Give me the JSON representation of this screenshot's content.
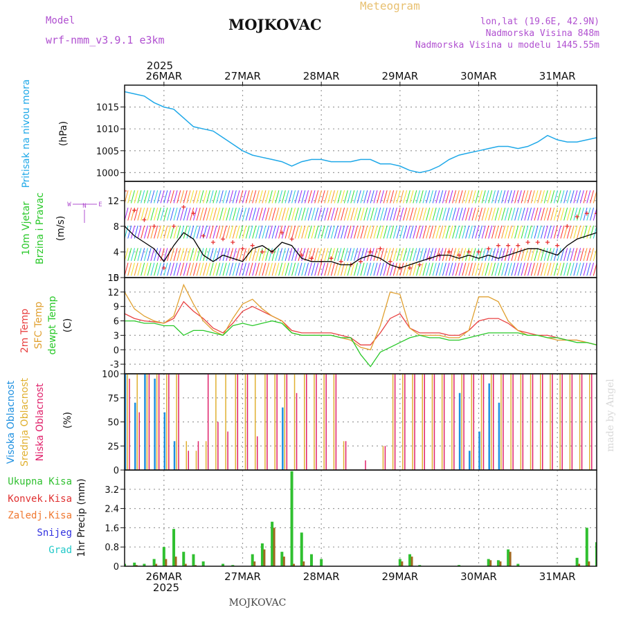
{
  "header": {
    "model_label": "Model",
    "model_name": "wrf-nmm_v3.9.1 e3km",
    "station": "MOJKOVAC",
    "product": "Meteogram",
    "coords": "lon,lat (19.6E, 42.9N)",
    "elevation": "Nadmorska Visina 848m",
    "model_elevation": "Nadmorska Visina u modelu 1445.55m"
  },
  "footer": {
    "station": "MOJKOVAC",
    "credit": "made by Angel"
  },
  "colors": {
    "pressure": "#1ea8e8",
    "wind_speed": "#000000",
    "gust": "#e83030",
    "t2m": "#e84040",
    "tsfc": "#e0a030",
    "dewpt": "#28c828",
    "cloud_high": "#1e90e0",
    "cloud_mid": "#e0b030",
    "cloud_low": "#e0206a",
    "precip_total": "#30c030",
    "precip_conv": "#e03030",
    "precip_frozen": "#f07830",
    "snow": "#3030e0",
    "graupel": "#20c8c8",
    "label_purple": "#b050d0"
  },
  "chart_data": [
    {
      "id": "pressure",
      "type": "line",
      "ylabel_name": "Pritisak na nivou mora",
      "ylabel_unit": "(hPa)",
      "ylim": [
        998,
        1020
      ],
      "yticks": [
        1000,
        1005,
        1010,
        1015
      ],
      "x": [
        0,
        3,
        6,
        9,
        12,
        15,
        18,
        21,
        24,
        27,
        30,
        33,
        36,
        39,
        42,
        45,
        48,
        51,
        54,
        57,
        60,
        63,
        66,
        69,
        72,
        75,
        78,
        81,
        84,
        87,
        90,
        93,
        96,
        99,
        102,
        105,
        108,
        111,
        114,
        117,
        120,
        123,
        126,
        129,
        132,
        135,
        138,
        141,
        144
      ],
      "values": [
        1018.5,
        1018.0,
        1017.5,
        1016.0,
        1015.0,
        1014.5,
        1012.5,
        1010.5,
        1010.0,
        1009.5,
        1008.0,
        1006.5,
        1005.0,
        1004.0,
        1003.5,
        1003.0,
        1002.5,
        1001.5,
        1002.5,
        1003.0,
        1003.0,
        1002.5,
        1002.5,
        1002.5,
        1003.0,
        1003.0,
        1002.0,
        1002.0,
        1001.5,
        1000.5,
        1000.0,
        1000.5,
        1001.5,
        1003.0,
        1004.0,
        1004.5,
        1005.0,
        1005.5,
        1006.0,
        1006.0,
        1005.5,
        1006.0,
        1007.0,
        1008.5,
        1007.5,
        1007.0,
        1007.0,
        1007.5,
        1008.0
      ]
    },
    {
      "id": "wind",
      "type": "line",
      "ylabel_name": "10m Vjetar",
      "ylabel_name2": "Brzina i Pravac",
      "ylabel_unit": "(m/s)",
      "compass": "N",
      "ylim": [
        0,
        15
      ],
      "yticks": [
        0,
        4,
        8,
        12
      ],
      "x": [
        0,
        3,
        6,
        9,
        12,
        15,
        18,
        21,
        24,
        27,
        30,
        33,
        36,
        39,
        42,
        45,
        48,
        51,
        54,
        57,
        60,
        63,
        66,
        69,
        72,
        75,
        78,
        81,
        84,
        87,
        90,
        93,
        96,
        99,
        102,
        105,
        108,
        111,
        114,
        117,
        120,
        123,
        126,
        129,
        132,
        135,
        138,
        141,
        144
      ],
      "series": [
        {
          "name": "Brzina",
          "values": [
            8.0,
            6.5,
            5.5,
            4.5,
            2.5,
            5.0,
            7.0,
            6.0,
            3.5,
            2.5,
            3.5,
            3.0,
            2.5,
            4.5,
            5.0,
            4.0,
            5.5,
            5.0,
            3.0,
            2.5,
            2.5,
            2.5,
            2.0,
            2.0,
            3.0,
            3.5,
            3.0,
            2.0,
            1.5,
            2.0,
            2.5,
            3.0,
            3.5,
            3.5,
            3.0,
            3.5,
            3.0,
            3.5,
            3.0,
            3.5,
            4.0,
            4.5,
            4.5,
            4.0,
            3.5,
            5.0,
            6.0,
            6.5,
            7.0
          ]
        },
        {
          "name": "Udari",
          "values": [
            13.5,
            10.5,
            9.0,
            8.0,
            1.5,
            8.0,
            11.0,
            10.0,
            6.5,
            5.5,
            6.0,
            5.5,
            4.5,
            5.0,
            4.0,
            4.0,
            7.0,
            6.0,
            3.5,
            3.0,
            2.5,
            3.0,
            2.5,
            2.0,
            2.5,
            4.0,
            4.5,
            2.5,
            1.5,
            1.5,
            2.0,
            3.0,
            3.5,
            4.0,
            3.5,
            4.0,
            4.0,
            4.5,
            5.0,
            5.0,
            5.0,
            5.5,
            5.5,
            5.5,
            5.0,
            8.0,
            9.5,
            10.0,
            10.0
          ]
        }
      ]
    },
    {
      "id": "temperature",
      "type": "line",
      "ylabel_name": "2m Temp",
      "ylabel_name2": "SFC Temp",
      "ylabel_name3": "dewpt Temp",
      "ylabel_unit": "(C)",
      "ylim": [
        -5,
        15
      ],
      "yticks": [
        -3,
        0,
        3,
        6,
        9,
        12,
        15
      ],
      "x": [
        0,
        3,
        6,
        9,
        12,
        15,
        18,
        21,
        24,
        27,
        30,
        33,
        36,
        39,
        42,
        45,
        48,
        51,
        54,
        57,
        60,
        63,
        66,
        69,
        72,
        75,
        78,
        81,
        84,
        87,
        90,
        93,
        96,
        99,
        102,
        105,
        108,
        111,
        114,
        117,
        120,
        123,
        126,
        129,
        132,
        135,
        138,
        141,
        144
      ],
      "series": [
        {
          "name": "2m Temp",
          "values": [
            7.5,
            6.5,
            6.0,
            5.8,
            5.5,
            6.5,
            10.0,
            8.0,
            6.5,
            4.5,
            3.5,
            5.5,
            8.0,
            9.0,
            8.0,
            7.0,
            6.0,
            4.0,
            3.5,
            3.5,
            3.5,
            3.5,
            3.0,
            2.5,
            1.0,
            1.0,
            3.5,
            6.5,
            7.5,
            4.5,
            3.5,
            3.5,
            3.5,
            3.0,
            3.0,
            4.0,
            6.0,
            6.5,
            6.5,
            5.5,
            4.0,
            3.5,
            3.0,
            3.0,
            2.5,
            2.0,
            2.0,
            1.5,
            1.0
          ]
        },
        {
          "name": "SFC Temp",
          "values": [
            12.0,
            8.5,
            7.0,
            6.0,
            5.5,
            7.0,
            13.5,
            9.5,
            6.0,
            4.0,
            3.0,
            6.5,
            9.5,
            10.5,
            8.5,
            7.0,
            6.0,
            3.5,
            3.0,
            3.0,
            3.0,
            3.0,
            2.5,
            2.0,
            0.5,
            0.0,
            5.0,
            12.0,
            11.5,
            4.5,
            3.0,
            3.0,
            3.0,
            2.5,
            2.5,
            4.0,
            11.0,
            11.0,
            10.0,
            6.0,
            4.0,
            3.0,
            3.0,
            2.5,
            2.0,
            2.0,
            2.0,
            1.5,
            1.0
          ]
        },
        {
          "name": "dewpt Temp",
          "values": [
            6.0,
            6.0,
            5.5,
            5.5,
            5.0,
            5.0,
            3.0,
            4.0,
            4.0,
            3.5,
            3.0,
            5.0,
            5.5,
            5.0,
            5.5,
            6.0,
            5.5,
            3.5,
            3.0,
            3.0,
            3.0,
            3.0,
            2.5,
            2.5,
            -1.0,
            -3.5,
            -0.5,
            0.5,
            1.5,
            2.5,
            3.0,
            2.5,
            2.5,
            2.0,
            2.0,
            2.5,
            3.0,
            3.5,
            3.5,
            3.5,
            3.5,
            3.0,
            3.0,
            2.5,
            2.5,
            2.0,
            1.5,
            1.5,
            1.0
          ]
        }
      ]
    },
    {
      "id": "clouds",
      "type": "bar",
      "ylabel_name": "Visoka Oblacnost",
      "ylabel_name2": "Srednja Oblacnost",
      "ylabel_name3": "Niska Oblacnost",
      "ylabel_unit": "(%)",
      "ylim": [
        0,
        100
      ],
      "yticks": [
        0,
        25,
        50,
        75,
        100
      ],
      "x": [
        0,
        3,
        6,
        9,
        12,
        15,
        18,
        21,
        24,
        27,
        30,
        33,
        36,
        39,
        42,
        45,
        48,
        51,
        54,
        57,
        60,
        63,
        66,
        69,
        72,
        75,
        78,
        81,
        84,
        87,
        90,
        93,
        96,
        99,
        102,
        105,
        108,
        111,
        114,
        117,
        120,
        123,
        126,
        129,
        132,
        135,
        138,
        141,
        144
      ],
      "series": [
        {
          "name": "Visoka",
          "values": [
            100,
            70,
            100,
            95,
            60,
            30,
            0,
            0,
            0,
            0,
            0,
            0,
            0,
            0,
            0,
            0,
            65,
            0,
            0,
            0,
            0,
            0,
            0,
            0,
            0,
            0,
            0,
            0,
            0,
            0,
            0,
            0,
            0,
            0,
            80,
            20,
            40,
            90,
            70,
            0,
            0,
            0,
            0,
            0,
            0,
            0,
            0,
            0,
            0
          ]
        },
        {
          "name": "Srednja",
          "values": [
            100,
            100,
            100,
            100,
            100,
            100,
            30,
            20,
            30,
            100,
            100,
            100,
            100,
            100,
            100,
            100,
            100,
            100,
            100,
            100,
            100,
            100,
            30,
            0,
            0,
            0,
            25,
            100,
            100,
            100,
            100,
            100,
            100,
            100,
            100,
            100,
            100,
            100,
            100,
            100,
            100,
            100,
            100,
            100,
            100,
            100,
            100,
            100,
            100
          ]
        },
        {
          "name": "Niska",
          "values": [
            95,
            60,
            100,
            100,
            100,
            100,
            20,
            30,
            100,
            50,
            40,
            100,
            100,
            35,
            100,
            100,
            100,
            80,
            100,
            100,
            100,
            100,
            30,
            0,
            10,
            0,
            25,
            100,
            100,
            100,
            100,
            100,
            100,
            100,
            100,
            100,
            100,
            100,
            100,
            100,
            100,
            100,
            100,
            100,
            100,
            100,
            100,
            100,
            100
          ]
        }
      ]
    },
    {
      "id": "precip",
      "type": "bar",
      "ylabel_name": "1hr Precip (mm)",
      "legend": [
        "Ukupna Kisa",
        "Konvek.Kisa",
        "Zaledj.Kisa",
        "Snijeg",
        "Grad"
      ],
      "ylim": [
        0,
        4.0
      ],
      "yticks": [
        0,
        0.8,
        1.6,
        2.4,
        3.2
      ],
      "x": [
        0,
        3,
        6,
        9,
        12,
        15,
        18,
        21,
        24,
        27,
        30,
        33,
        36,
        39,
        42,
        45,
        48,
        51,
        54,
        57,
        60,
        63,
        66,
        69,
        72,
        75,
        78,
        81,
        84,
        87,
        90,
        93,
        96,
        99,
        102,
        105,
        108,
        111,
        114,
        117,
        120,
        123,
        126,
        129,
        132,
        135,
        138,
        141,
        144
      ],
      "series": [
        {
          "name": "Ukupna Kisa",
          "values": [
            0.1,
            0.15,
            0.1,
            0.3,
            0.8,
            1.55,
            0.6,
            0.5,
            0.2,
            0.0,
            0.1,
            0.05,
            0.0,
            0.5,
            0.95,
            1.85,
            0.6,
            3.95,
            1.4,
            0.5,
            0.3,
            0.0,
            0.0,
            0.0,
            0.0,
            0.0,
            0.0,
            0.0,
            0.3,
            0.5,
            0.05,
            0.0,
            0.0,
            0.0,
            0.05,
            0.0,
            0.0,
            0.3,
            0.25,
            0.7,
            0.1,
            0.0,
            0.0,
            0.0,
            0.0,
            0.0,
            0.35,
            1.6,
            1.0
          ]
        },
        {
          "name": "Konvek.Kisa",
          "values": [
            0.0,
            0.05,
            0.0,
            0.1,
            0.3,
            0.4,
            0.1,
            0.05,
            0.0,
            0.0,
            0.0,
            0.0,
            0.0,
            0.2,
            0.7,
            1.6,
            0.4,
            0.1,
            0.2,
            0.0,
            0.0,
            0.0,
            0.0,
            0.0,
            0.0,
            0.0,
            0.0,
            0.0,
            0.2,
            0.4,
            0.0,
            0.0,
            0.0,
            0.0,
            0.0,
            0.0,
            0.0,
            0.25,
            0.2,
            0.6,
            0.0,
            0.0,
            0.0,
            0.0,
            0.0,
            0.0,
            0.1,
            0.2,
            0.2
          ]
        }
      ]
    }
  ],
  "x_axis": {
    "year": "2025",
    "day_labels": [
      "26MAR",
      "27MAR",
      "28MAR",
      "29MAR",
      "30MAR",
      "31MAR"
    ],
    "day_hours": [
      12,
      36,
      60,
      84,
      108,
      132
    ],
    "range_hours": [
      0,
      144
    ]
  }
}
